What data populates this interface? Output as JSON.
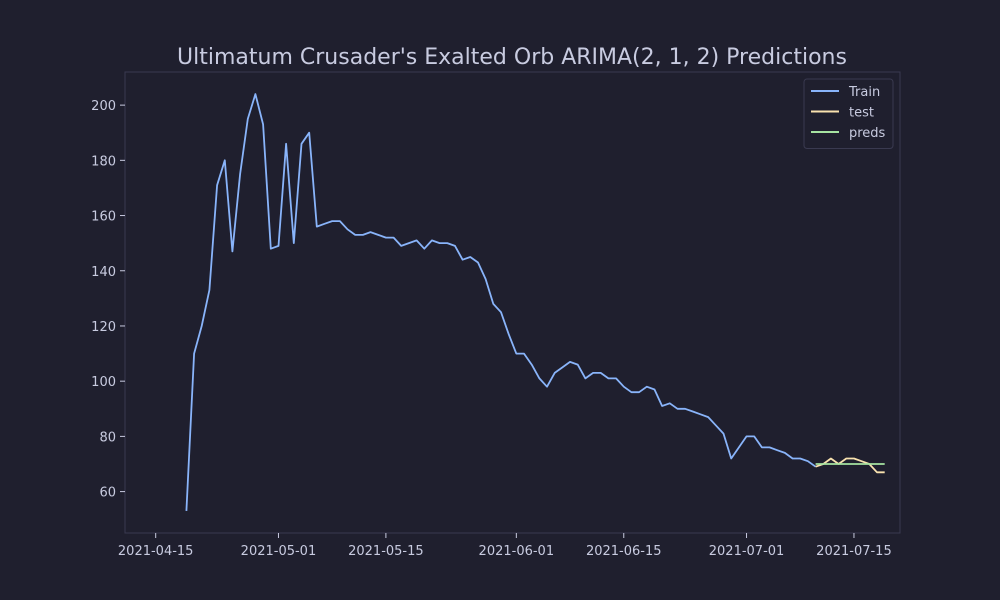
{
  "chart_data": {
    "type": "line",
    "title": "Ultimatum Crusader's Exalted Orb ARIMA(2, 1, 2) Predictions",
    "xlabel": "",
    "ylabel": "",
    "xlim": [
      "2021-04-11",
      "2021-07-21"
    ],
    "ylim": [
      45,
      212
    ],
    "x_ticks": [
      "2021-04-15",
      "2021-05-01",
      "2021-05-15",
      "2021-06-01",
      "2021-06-15",
      "2021-07-01",
      "2021-07-15"
    ],
    "y_ticks": [
      60,
      80,
      100,
      120,
      140,
      160,
      180,
      200
    ],
    "grid": false,
    "legend_position": "top-right",
    "colors": {
      "background": "#1f1f2e",
      "axes_border": "#3a3a50",
      "text": "#c8cbe0"
    },
    "series": [
      {
        "name": "Train",
        "color": "#89b4fa",
        "x": [
          "2021-04-19",
          "2021-04-20",
          "2021-04-21",
          "2021-04-22",
          "2021-04-23",
          "2021-04-24",
          "2021-04-25",
          "2021-04-26",
          "2021-04-27",
          "2021-04-28",
          "2021-04-29",
          "2021-04-30",
          "2021-05-01",
          "2021-05-02",
          "2021-05-03",
          "2021-05-04",
          "2021-05-05",
          "2021-05-06",
          "2021-05-07",
          "2021-05-08",
          "2021-05-09",
          "2021-05-10",
          "2021-05-11",
          "2021-05-12",
          "2021-05-13",
          "2021-05-14",
          "2021-05-15",
          "2021-05-16",
          "2021-05-17",
          "2021-05-18",
          "2021-05-19",
          "2021-05-20",
          "2021-05-21",
          "2021-05-22",
          "2021-05-23",
          "2021-05-24",
          "2021-05-25",
          "2021-05-26",
          "2021-05-27",
          "2021-05-28",
          "2021-05-29",
          "2021-05-30",
          "2021-05-31",
          "2021-06-01",
          "2021-06-02",
          "2021-06-03",
          "2021-06-04",
          "2021-06-05",
          "2021-06-06",
          "2021-06-07",
          "2021-06-08",
          "2021-06-09",
          "2021-06-10",
          "2021-06-11",
          "2021-06-12",
          "2021-06-13",
          "2021-06-14",
          "2021-06-15",
          "2021-06-16",
          "2021-06-17",
          "2021-06-18",
          "2021-06-19",
          "2021-06-20",
          "2021-06-21",
          "2021-06-22",
          "2021-06-23",
          "2021-06-24",
          "2021-06-25",
          "2021-06-26",
          "2021-06-27",
          "2021-06-28",
          "2021-06-29",
          "2021-06-30",
          "2021-07-01",
          "2021-07-02",
          "2021-07-03",
          "2021-07-04",
          "2021-07-05",
          "2021-07-06",
          "2021-07-07",
          "2021-07-08",
          "2021-07-09",
          "2021-07-10"
        ],
        "values": [
          53,
          110,
          120,
          133,
          171,
          180,
          147,
          175,
          195,
          204,
          193,
          148,
          149,
          186,
          150,
          186,
          190,
          156,
          157,
          158,
          158,
          155,
          153,
          153,
          154,
          153,
          152,
          152,
          149,
          150,
          151,
          148,
          151,
          150,
          150,
          149,
          144,
          145,
          143,
          137,
          128,
          125,
          117,
          110,
          110,
          106,
          101,
          98,
          103,
          105,
          107,
          106,
          101,
          103,
          103,
          101,
          101,
          98,
          96,
          96,
          98,
          97,
          91,
          92,
          90,
          90,
          89,
          88,
          87,
          84,
          81,
          72,
          76,
          80,
          80,
          76,
          76,
          75,
          74,
          72,
          72,
          71,
          69
        ]
      },
      {
        "name": "test",
        "color": "#f9e2af",
        "x": [
          "2021-07-10",
          "2021-07-11",
          "2021-07-12",
          "2021-07-13",
          "2021-07-14",
          "2021-07-15",
          "2021-07-16",
          "2021-07-17",
          "2021-07-18",
          "2021-07-19"
        ],
        "values": [
          69,
          70,
          72,
          70,
          72,
          72,
          71,
          70,
          67,
          67
        ]
      },
      {
        "name": "preds",
        "color": "#a6e3a1",
        "x": [
          "2021-07-10",
          "2021-07-11",
          "2021-07-12",
          "2021-07-13",
          "2021-07-14",
          "2021-07-15",
          "2021-07-16",
          "2021-07-17",
          "2021-07-18",
          "2021-07-19"
        ],
        "values": [
          70,
          70,
          70,
          70,
          70,
          70,
          70,
          70,
          70,
          70
        ]
      }
    ]
  }
}
